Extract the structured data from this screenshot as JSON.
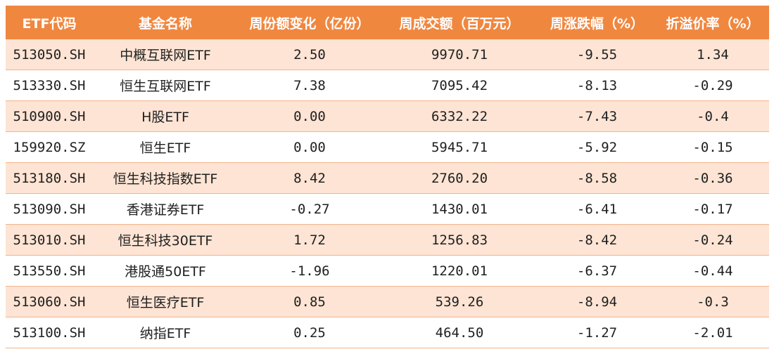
{
  "headers": [
    "ETF代码",
    "基金名称",
    "周份额变化（亿份）",
    "周成交额（百万元）",
    "周涨跌幅（%）",
    "折溢价率（%）"
  ],
  "rows": [
    {
      "code": "513050.SH",
      "name": "中概互联网ETF",
      "share_change": "2.50",
      "turnover": "9970.71",
      "weekly_change": "-9.55",
      "premium": "1.34"
    },
    {
      "code": "513330.SH",
      "name": "恒生互联网ETF",
      "share_change": "7.38",
      "turnover": "7095.42",
      "weekly_change": "-8.13",
      "premium": "-0.29"
    },
    {
      "code": "510900.SH",
      "name": "H股ETF",
      "share_change": "0.00",
      "turnover": "6332.22",
      "weekly_change": "-7.43",
      "premium": "-0.4"
    },
    {
      "code": "159920.SZ",
      "name": "恒生ETF",
      "share_change": "0.00",
      "turnover": "5945.71",
      "weekly_change": "-5.92",
      "premium": "-0.15"
    },
    {
      "code": "513180.SH",
      "name": "恒生科技指数ETF",
      "share_change": "8.42",
      "turnover": "2760.20",
      "weekly_change": "-8.58",
      "premium": "-0.36"
    },
    {
      "code": "513090.SH",
      "name": "香港证券ETF",
      "share_change": "-0.27",
      "turnover": "1430.01",
      "weekly_change": "-6.41",
      "premium": "-0.17"
    },
    {
      "code": "513010.SH",
      "name": "恒生科技30ETF",
      "share_change": "1.72",
      "turnover": "1256.83",
      "weekly_change": "-8.42",
      "premium": "-0.24"
    },
    {
      "code": "513550.SH",
      "name": "港股通50ETF",
      "share_change": "-1.96",
      "turnover": "1220.01",
      "weekly_change": "-6.37",
      "premium": "-0.44"
    },
    {
      "code": "513060.SH",
      "name": "恒生医疗ETF",
      "share_change": "0.85",
      "turnover": "539.26",
      "weekly_change": "-8.94",
      "premium": "-0.3"
    },
    {
      "code": "513100.SH",
      "name": "纳指ETF",
      "share_change": "0.25",
      "turnover": "464.50",
      "weekly_change": "-1.27",
      "premium": "-2.01"
    }
  ],
  "colors": {
    "header_bg": "#f0873f",
    "stripe_bg": "#fde4d4",
    "divider": "#f3b48a"
  }
}
